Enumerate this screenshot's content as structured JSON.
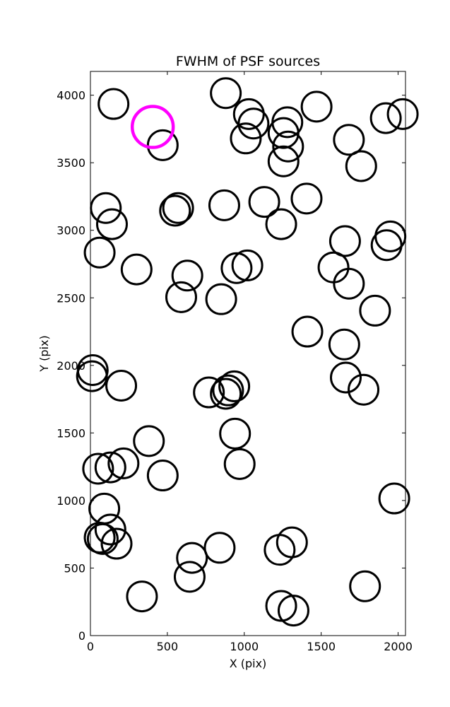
{
  "chart_data": {
    "type": "scatter",
    "title": "FWHM of PSF sources",
    "xlabel": "X (pix)",
    "ylabel": "Y (pix)",
    "xlim": [
      0,
      2048
    ],
    "ylim": [
      0,
      4176
    ],
    "xticks": [
      0,
      500,
      1000,
      1500,
      2000
    ],
    "yticks": [
      0,
      500,
      1000,
      1500,
      2000,
      2500,
      3000,
      3500,
      4000
    ],
    "grid": false,
    "marker": "open-circle",
    "colors": {
      "normal": "#000000",
      "highlight": "#ff00ff"
    },
    "series": [
      {
        "role": "normal",
        "points": [
          [
            150,
            3935
          ],
          [
            470,
            3630
          ],
          [
            880,
            4015
          ],
          [
            1030,
            3860
          ],
          [
            1060,
            3790
          ],
          [
            1010,
            3680
          ],
          [
            1280,
            3800
          ],
          [
            1255,
            3720
          ],
          [
            1285,
            3620
          ],
          [
            1255,
            3510
          ],
          [
            1470,
            3915
          ],
          [
            1680,
            3670
          ],
          [
            1760,
            3475
          ],
          [
            1920,
            3830
          ],
          [
            2030,
            3860
          ],
          [
            100,
            3165
          ],
          [
            140,
            3045
          ],
          [
            550,
            3145
          ],
          [
            570,
            3165
          ],
          [
            870,
            3185
          ],
          [
            1130,
            3210
          ],
          [
            1405,
            3235
          ],
          [
            1240,
            3045
          ],
          [
            60,
            2835
          ],
          [
            300,
            2710
          ],
          [
            630,
            2665
          ],
          [
            590,
            2505
          ],
          [
            850,
            2490
          ],
          [
            950,
            2720
          ],
          [
            1020,
            2740
          ],
          [
            1580,
            2725
          ],
          [
            1655,
            2920
          ],
          [
            1680,
            2605
          ],
          [
            1950,
            2955
          ],
          [
            1925,
            2890
          ],
          [
            1410,
            2250
          ],
          [
            1650,
            2155
          ],
          [
            1850,
            2405
          ],
          [
            15,
            1965
          ],
          [
            10,
            1920
          ],
          [
            200,
            1850
          ],
          [
            770,
            1800
          ],
          [
            880,
            1790
          ],
          [
            895,
            1815
          ],
          [
            935,
            1845
          ],
          [
            1660,
            1910
          ],
          [
            1775,
            1820
          ],
          [
            380,
            1440
          ],
          [
            940,
            1495
          ],
          [
            970,
            1270
          ],
          [
            50,
            1235
          ],
          [
            130,
            1245
          ],
          [
            215,
            1275
          ],
          [
            470,
            1185
          ],
          [
            90,
            940
          ],
          [
            130,
            785
          ],
          [
            60,
            725
          ],
          [
            80,
            715
          ],
          [
            170,
            680
          ],
          [
            660,
            575
          ],
          [
            840,
            650
          ],
          [
            1230,
            635
          ],
          [
            1310,
            690
          ],
          [
            1975,
            1015
          ],
          [
            335,
            290
          ],
          [
            645,
            435
          ],
          [
            1240,
            220
          ],
          [
            1320,
            185
          ],
          [
            1785,
            365
          ]
        ]
      },
      {
        "role": "highlight",
        "points": [
          [
            405,
            3765
          ]
        ]
      }
    ]
  }
}
